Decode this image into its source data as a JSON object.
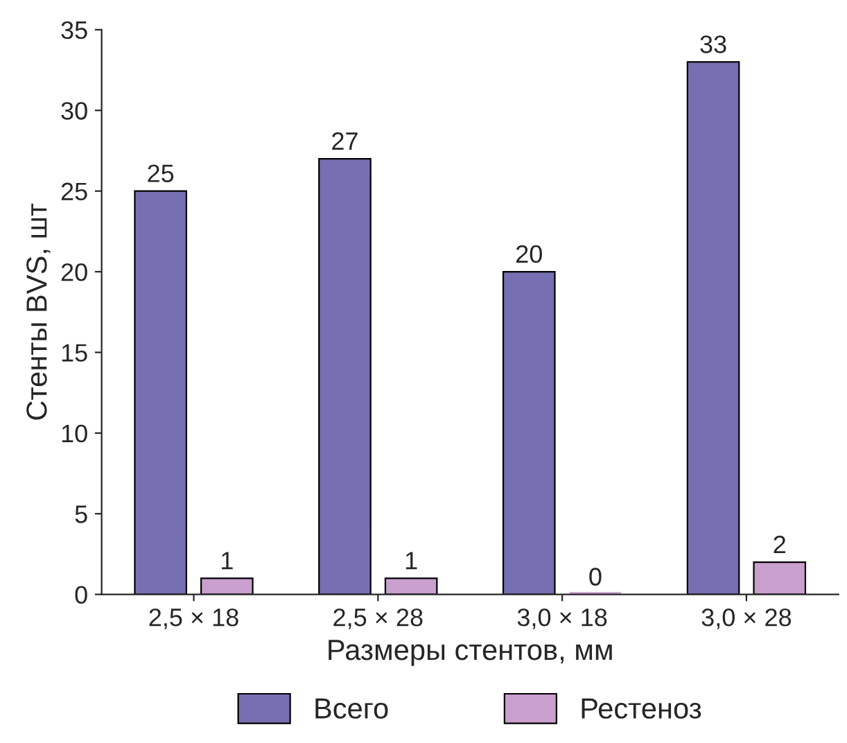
{
  "chart_data": {
    "type": "bar",
    "xlabel": "Размеры стентов, мм",
    "ylabel": "Стенты BVS, шт",
    "categories": [
      "2,5 × 18",
      "2,5 × 28",
      "3,0 × 18",
      "3,0 × 28"
    ],
    "series": [
      {
        "name": "Всего",
        "color": "#7670b2",
        "values": [
          25,
          27,
          20,
          33
        ]
      },
      {
        "name": "Рестеноз",
        "color": "#c99fce",
        "values": [
          1,
          1,
          0,
          2
        ]
      }
    ],
    "ylim": [
      0,
      35
    ],
    "yticks": [
      0,
      5,
      10,
      15,
      20,
      25,
      30,
      35
    ],
    "data_labels": true,
    "grid": false,
    "legend": "bottom"
  }
}
